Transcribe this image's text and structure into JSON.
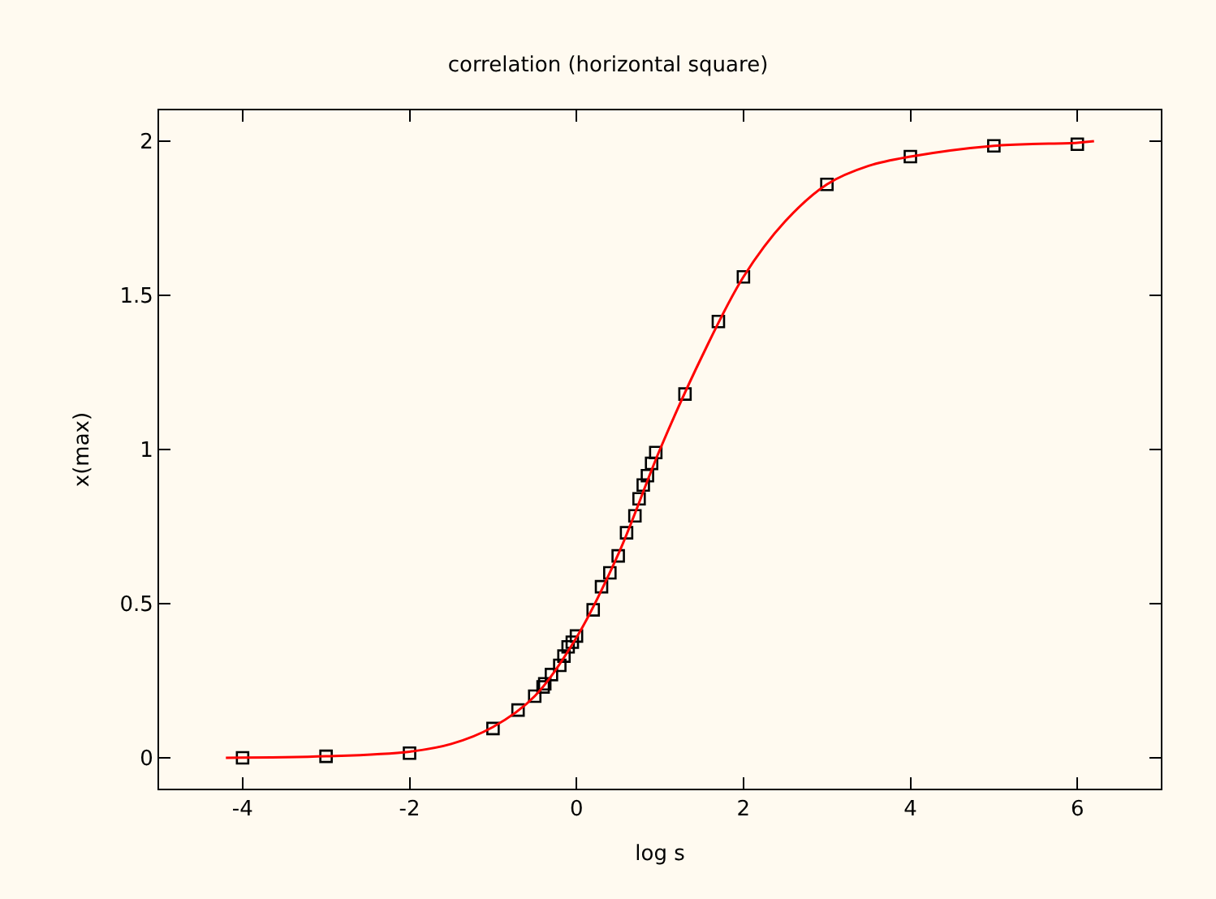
{
  "chart_data": {
    "type": "scatter",
    "title": "correlation (horizontal square)",
    "xlabel": "log s",
    "ylabel": "x(max)",
    "xlim": [
      -5,
      7
    ],
    "xticks": [
      -4,
      -2,
      0,
      2,
      4,
      6
    ],
    "ylim": [
      -0.1,
      2.1
    ],
    "yticks": [
      0,
      0.5,
      1,
      1.5,
      2
    ],
    "grid": false,
    "legend": false,
    "series": [
      {
        "marker": "square",
        "color": "#000000",
        "x": [
          -4,
          -3,
          -2,
          -1,
          -0.7,
          -0.5,
          -0.4,
          -0.38,
          -0.3,
          -0.2,
          -0.15,
          -0.1,
          -0.05,
          0,
          0.2,
          0.3,
          0.4,
          0.5,
          0.6,
          0.7,
          0.75,
          0.8,
          0.85,
          0.9,
          0.95,
          1.3,
          1.7,
          2,
          3,
          4,
          5,
          6
        ],
        "values": [
          0,
          0.005,
          0.015,
          0.095,
          0.155,
          0.2,
          0.23,
          0.24,
          0.27,
          0.3,
          0.33,
          0.36,
          0.375,
          0.395,
          0.48,
          0.555,
          0.6,
          0.655,
          0.73,
          0.785,
          0.84,
          0.885,
          0.915,
          0.955,
          0.99,
          1.18,
          1.415,
          1.56,
          1.86,
          1.95,
          1.985,
          1.99
        ]
      },
      {
        "type": "line",
        "marker": "none",
        "line_style": "solid",
        "color": "#ff0000",
        "x": [
          -4.2,
          -3,
          -2,
          -1.5,
          -1,
          -0.5,
          0,
          0.5,
          1,
          1.5,
          2,
          2.5,
          3,
          3.5,
          4,
          5,
          6,
          6.2
        ],
        "values": [
          0,
          0.005,
          0.02,
          0.045,
          0.1,
          0.2,
          0.39,
          0.66,
          1.0,
          1.3,
          1.56,
          1.74,
          1.86,
          1.92,
          1.95,
          1.985,
          1.995,
          2.0
        ]
      }
    ]
  }
}
